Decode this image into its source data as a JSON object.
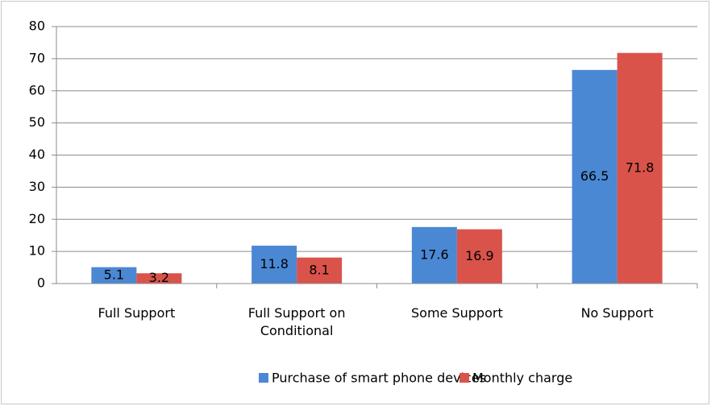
{
  "chart_data": {
    "type": "bar",
    "categories": [
      "Full Support",
      "Full Support on Conditional",
      "Some Support",
      "No Support"
    ],
    "series": [
      {
        "name": "Purchase of smart phone devices",
        "color": "#4a88d4",
        "values": [
          5.1,
          11.8,
          17.6,
          66.5
        ]
      },
      {
        "name": "Monthly charge",
        "color": "#d9534b",
        "values": [
          3.2,
          8.1,
          16.9,
          71.8
        ]
      }
    ],
    "ylim": [
      0,
      80
    ],
    "yticks": [
      0,
      10,
      20,
      30,
      40,
      50,
      60,
      70,
      80
    ],
    "grid": true,
    "legend": "bottom"
  }
}
